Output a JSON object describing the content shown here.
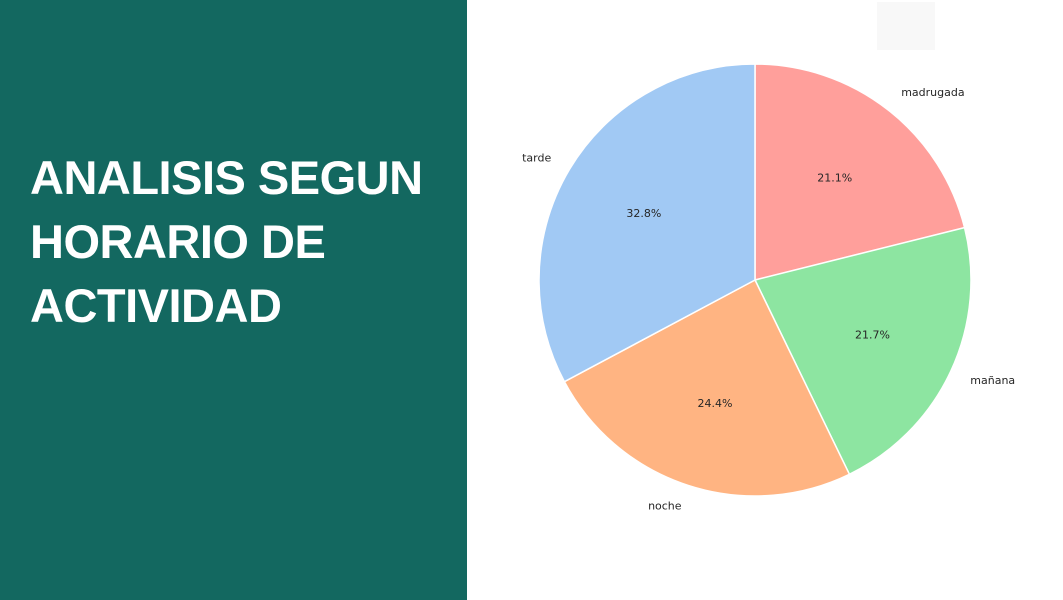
{
  "slide": {
    "title_lines": [
      "ANALISIS SEGUN",
      "HORARIO DE",
      "ACTIVIDAD"
    ],
    "panel_color": "#136860",
    "title_color": "#ffffff"
  },
  "chart_data": {
    "type": "pie",
    "start_angle_deg": 90,
    "direction": "clockwise",
    "categories": [
      "madrugada",
      "mañana",
      "noche",
      "tarde"
    ],
    "values": [
      21.1,
      21.7,
      24.4,
      32.8
    ],
    "labels": [
      "21.1%",
      "21.7%",
      "24.4%",
      "32.8%"
    ],
    "colors": [
      "#ff9f9b",
      "#8de5a1",
      "#ffb482",
      "#a1c9f4"
    ],
    "title": "",
    "legend": "none"
  }
}
